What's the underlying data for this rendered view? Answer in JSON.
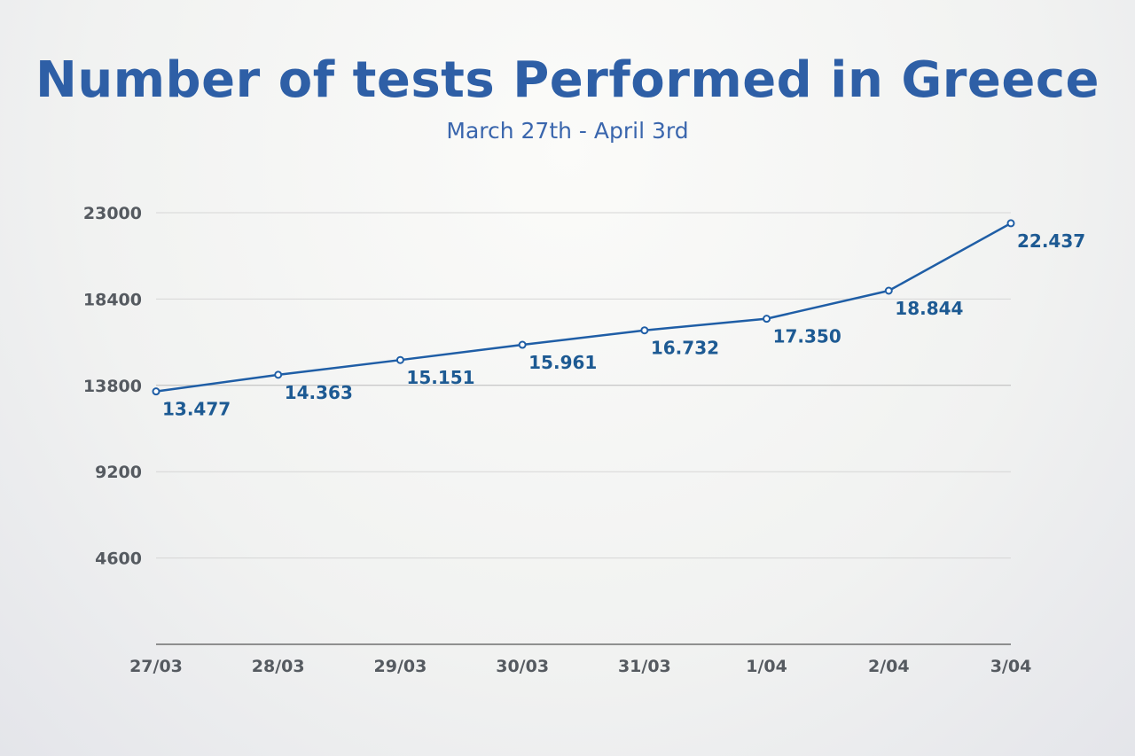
{
  "chart_data": {
    "type": "line",
    "title": "Number of tests Performed in Greece",
    "subtitle": "March 27th - April 3rd",
    "categories": [
      "27/03",
      "28/03",
      "29/03",
      "30/03",
      "31/03",
      "1/04",
      "2/04",
      "3/04"
    ],
    "values": [
      13477,
      14363,
      15151,
      15961,
      16732,
      17350,
      18844,
      22437
    ],
    "data_labels": [
      "13.477",
      "14.363",
      "15.151",
      "15.961",
      "16.732",
      "17.350",
      "18.844",
      "22.437"
    ],
    "y_ticks": [
      4600,
      9200,
      13800,
      18400,
      23000
    ],
    "ylim": [
      0,
      23000
    ],
    "grid": true,
    "legend": "none",
    "colors": {
      "title": "#2e5fa6",
      "line": "#1f5ea6",
      "data_label": "#1d5a93",
      "tick_label": "#555a60",
      "grid": "#d6d6d6",
      "axis": "#555555"
    }
  }
}
